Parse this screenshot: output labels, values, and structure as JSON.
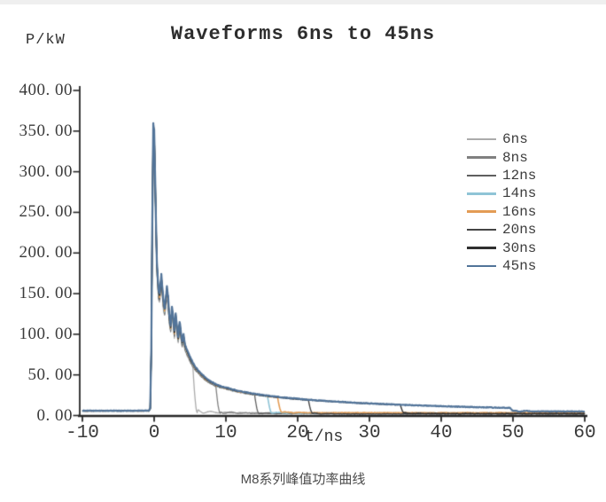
{
  "page": {
    "background": "#ffffff"
  },
  "chart_data": {
    "type": "line",
    "title": "Waveforms 6ns to 45ns",
    "ylabel": "P/kW",
    "xlabel": "t/ns",
    "caption": "M8系列峰值功率曲线",
    "xlim": [
      -10,
      60
    ],
    "ylim": [
      0,
      400
    ],
    "grid": false,
    "legend_position": "right",
    "ink_color": "#3a3a3a",
    "axis_color": "#262626",
    "peak_kw": 358,
    "baseline_kw": 6,
    "x_ticks": {
      "values": [
        -10,
        0,
        10,
        20,
        30,
        40,
        50,
        60
      ],
      "labels": [
        "-10",
        "0",
        "10",
        "20",
        "30",
        "40",
        "50",
        "60"
      ]
    },
    "y_ticks": {
      "values": [
        400,
        350,
        300,
        250,
        200,
        150,
        100,
        50,
        0
      ],
      "labels": [
        "400. 00",
        "350. 00",
        "300. 00",
        "250. 00",
        "200. 00",
        "150. 00",
        "100. 00",
        "50. 00",
        "0. 00"
      ]
    },
    "series": [
      {
        "name": "6ns",
        "color": "#ababab",
        "cutoff_ns": 5.4,
        "residual_kw": 3.2,
        "offset_kw": 11,
        "bounce": 4.5,
        "width": 1.3
      },
      {
        "name": "8ns",
        "color": "#808080",
        "cutoff_ns": 8.6,
        "residual_kw": 2.6,
        "offset_kw": 9,
        "bounce": 3.2,
        "width": 1.3
      },
      {
        "name": "12ns",
        "color": "#5f5f5f",
        "cutoff_ns": 14.0,
        "residual_kw": 2.2,
        "offset_kw": 7,
        "bounce": 1.6,
        "width": 1.3
      },
      {
        "name": "14ns",
        "color": "#8fc4d6",
        "cutoff_ns": 15.8,
        "residual_kw": 2.9,
        "offset_kw": 5,
        "bounce": 1.4,
        "width": 1.6
      },
      {
        "name": "16ns",
        "color": "#e39c55",
        "cutoff_ns": 17.2,
        "residual_kw": 3.4,
        "offset_kw": 4,
        "bounce": 1.4,
        "width": 1.6
      },
      {
        "name": "20ns",
        "color": "#454545",
        "cutoff_ns": 21.5,
        "residual_kw": 1.9,
        "offset_kw": 3,
        "bounce": 1.2,
        "width": 1.4
      },
      {
        "name": "30ns",
        "color": "#2f2f2f",
        "cutoff_ns": 34.3,
        "residual_kw": 2.4,
        "offset_kw": 1.5,
        "bounce": 1.2,
        "width": 1.4
      },
      {
        "name": "45ns",
        "color": "#527499",
        "cutoff_ns": 49.6,
        "residual_kw": 5.0,
        "offset_kw": 0,
        "bounce": 1.5,
        "width": 2.2
      }
    ],
    "envelope_points": [
      [
        -10,
        6
      ],
      [
        -0.75,
        6
      ],
      [
        -0.55,
        9
      ],
      [
        -0.4,
        80
      ],
      [
        -0.28,
        220
      ],
      [
        -0.12,
        358
      ],
      [
        0,
        350
      ],
      [
        0.12,
        300
      ],
      [
        0.25,
        240
      ],
      [
        0.38,
        188
      ],
      [
        0.5,
        170
      ],
      [
        0.62,
        154
      ],
      [
        0.75,
        150
      ],
      [
        0.88,
        162
      ],
      [
        1,
        173
      ],
      [
        1.12,
        160
      ],
      [
        1.28,
        143
      ],
      [
        1.45,
        133
      ],
      [
        1.62,
        144
      ],
      [
        1.78,
        158
      ],
      [
        1.95,
        146
      ],
      [
        2.1,
        124
      ],
      [
        2.3,
        111
      ],
      [
        2.48,
        134
      ],
      [
        2.65,
        121
      ],
      [
        2.82,
        104
      ],
      [
        3,
        126
      ],
      [
        3.18,
        109
      ],
      [
        3.35,
        97
      ],
      [
        3.55,
        116
      ],
      [
        3.72,
        103
      ],
      [
        3.9,
        92
      ],
      [
        4.1,
        100
      ],
      [
        4.3,
        87
      ],
      [
        4.55,
        81
      ],
      [
        4.85,
        75
      ],
      [
        5.15,
        69
      ],
      [
        5.45,
        64
      ],
      [
        5.8,
        59
      ],
      [
        6.2,
        55
      ],
      [
        6.6,
        51
      ],
      [
        7,
        47.5
      ],
      [
        7.5,
        44
      ],
      [
        8,
        41.5
      ],
      [
        8.6,
        38.5
      ],
      [
        9.3,
        36
      ],
      [
        10,
        34.5
      ],
      [
        11,
        32
      ],
      [
        12,
        30
      ],
      [
        13,
        28.2
      ],
      [
        14,
        26.8
      ],
      [
        15,
        25.4
      ],
      [
        16,
        24.2
      ],
      [
        17,
        23.2
      ],
      [
        18,
        22.2
      ],
      [
        19,
        21.3
      ],
      [
        20,
        20.6
      ],
      [
        21,
        19.9
      ],
      [
        22,
        19.2
      ],
      [
        23,
        18.5
      ],
      [
        24,
        17.9
      ],
      [
        25,
        17.3
      ],
      [
        26,
        16.8
      ],
      [
        27,
        16.3
      ],
      [
        28,
        15.8
      ],
      [
        29,
        15.3
      ],
      [
        30,
        14.9
      ],
      [
        31,
        14.5
      ],
      [
        32,
        14.1
      ],
      [
        33,
        13.7
      ],
      [
        34,
        13.4
      ],
      [
        35,
        13
      ],
      [
        36,
        12.7
      ],
      [
        37,
        12.4
      ],
      [
        38,
        12.1
      ],
      [
        39,
        11.8
      ],
      [
        40,
        11.5
      ],
      [
        41,
        11.2
      ],
      [
        42,
        11
      ],
      [
        43,
        10.7
      ],
      [
        44,
        10.5
      ],
      [
        45,
        10.3
      ],
      [
        46,
        10.1
      ],
      [
        47,
        9.9
      ],
      [
        48,
        9.7
      ],
      [
        49,
        9.6
      ],
      [
        49.6,
        9.5
      ],
      [
        60,
        9.5
      ]
    ]
  }
}
